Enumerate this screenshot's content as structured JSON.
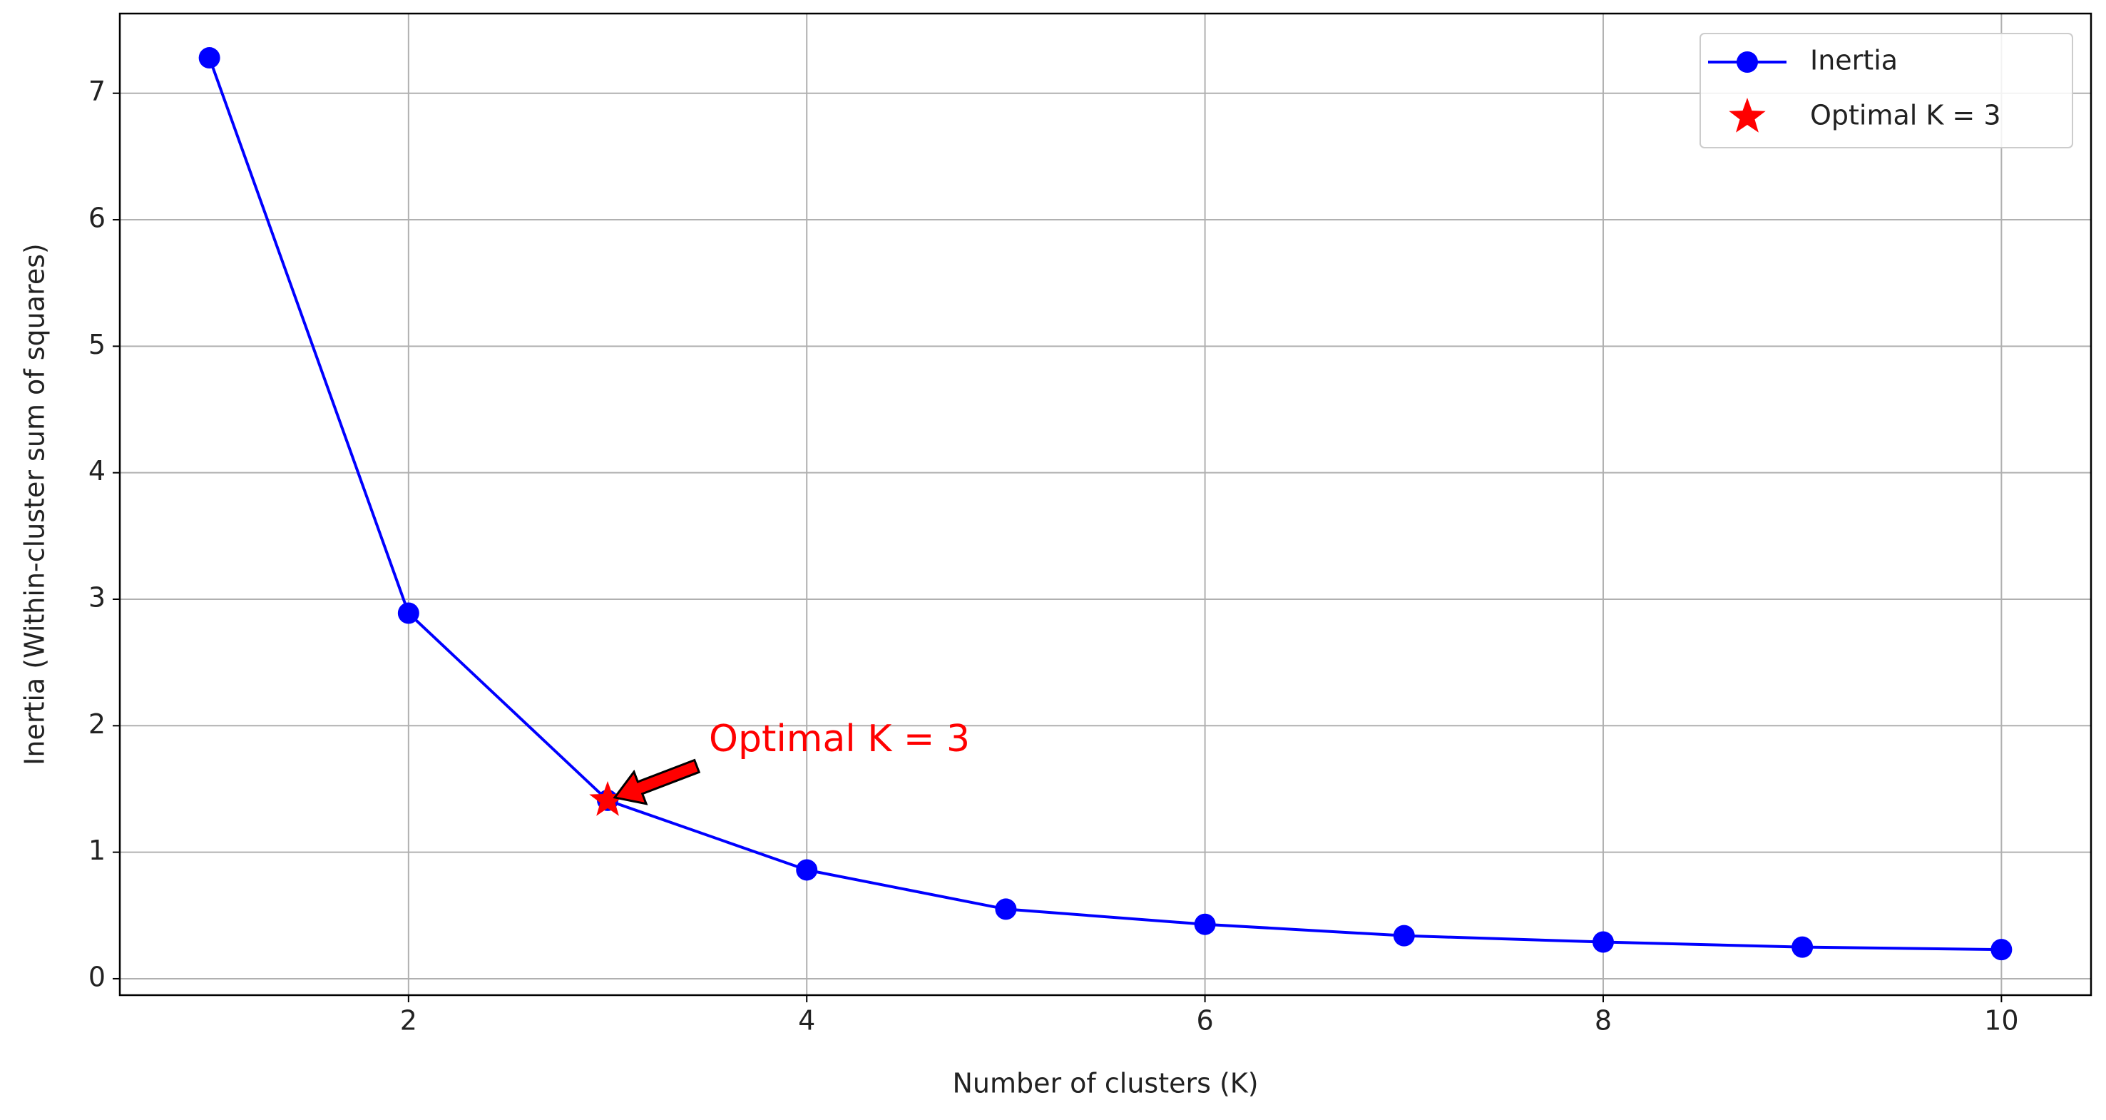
{
  "chart_data": {
    "type": "line",
    "xlabel": "Number of clusters (K)",
    "ylabel": "Inertia (Within-cluster sum of squares)",
    "x": [
      1,
      2,
      3,
      4,
      5,
      6,
      7,
      8,
      9,
      10
    ],
    "series": [
      {
        "name": "Inertia",
        "color": "#0000ff",
        "values": [
          7.28,
          2.89,
          1.41,
          0.86,
          0.55,
          0.43,
          0.34,
          0.29,
          0.25,
          0.23
        ]
      }
    ],
    "highlight": {
      "name": "Optimal K = 3",
      "x": 3,
      "y": 1.41,
      "color": "#ff0000"
    },
    "annotation": {
      "text": "Optimal K = 3",
      "color": "#ff0000"
    },
    "xlim": [
      0.55,
      10.45
    ],
    "ylim": [
      -0.13,
      7.63
    ],
    "xticks": [
      2,
      4,
      6,
      8,
      10
    ],
    "yticks": [
      0,
      1,
      2,
      3,
      4,
      5,
      6,
      7
    ],
    "grid": true,
    "legend": "upper right"
  }
}
